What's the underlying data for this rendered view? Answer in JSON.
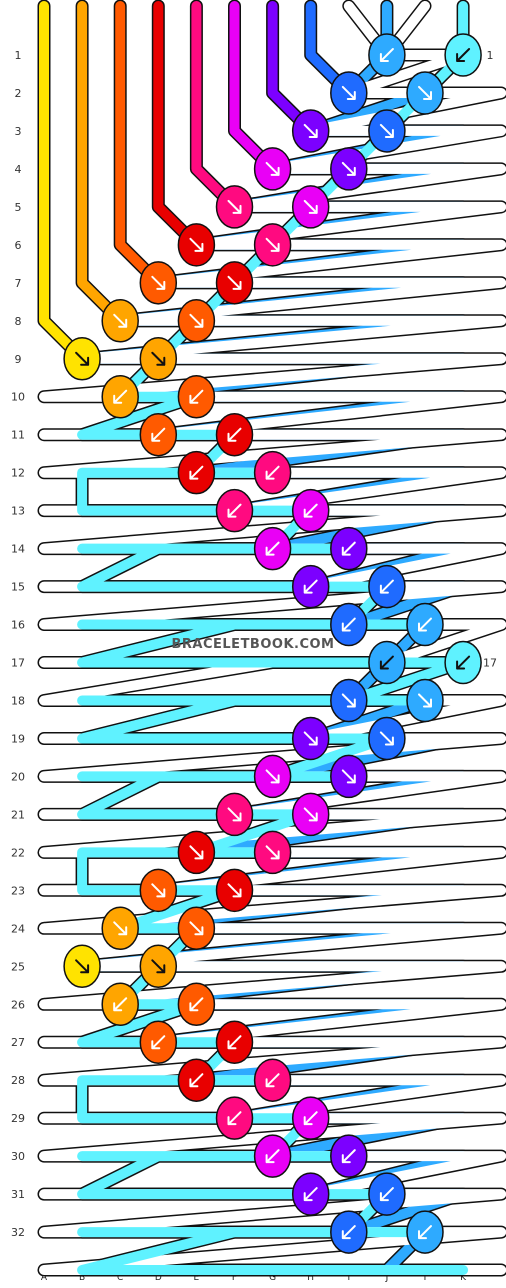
{
  "watermark": "BRACELETBOOK.COM",
  "strings": [
    {
      "label": "A",
      "color": "#ffe300"
    },
    {
      "label": "B",
      "color": "#ffa500"
    },
    {
      "label": "C",
      "color": "#ff5a00"
    },
    {
      "label": "D",
      "color": "#e80000"
    },
    {
      "label": "E",
      "color": "#ff0a80"
    },
    {
      "label": "F",
      "color": "#e900f6"
    },
    {
      "label": "G",
      "color": "#7c00ff"
    },
    {
      "label": "H",
      "color": "#1f6bff"
    },
    {
      "label": "I",
      "color": "#ffffff"
    },
    {
      "label": "J",
      "color": "#2eaaff"
    },
    {
      "label": "I",
      "color": "#ffffff"
    },
    {
      "label": "K",
      "color": "#5ff2ff"
    }
  ],
  "rows": [
    "1",
    "2",
    "3",
    "4",
    "5",
    "6",
    "7",
    "8",
    "9",
    "10",
    "11",
    "12",
    "13",
    "14",
    "15",
    "16",
    "17",
    "18",
    "19",
    "20",
    "21",
    "22",
    "23",
    "24",
    "25",
    "26",
    "27",
    "28",
    "29",
    "30",
    "31",
    "32"
  ],
  "knots": [
    {
      "row": 1,
      "col": 9,
      "color": "#2eaaff",
      "arrow": "bl"
    },
    {
      "row": 1,
      "col": 11,
      "color": "#5ff2ff",
      "arrow": "bl2"
    },
    {
      "row": 2,
      "col": 8,
      "color": "#1f6bff",
      "arrow": "br"
    },
    {
      "row": 2,
      "col": 10,
      "color": "#2eaaff",
      "arrow": "br"
    },
    {
      "row": 3,
      "col": 7,
      "color": "#7c00ff",
      "arrow": "br"
    },
    {
      "row": 3,
      "col": 9,
      "color": "#1f6bff",
      "arrow": "br"
    },
    {
      "row": 4,
      "col": 6,
      "color": "#e900f6",
      "arrow": "br"
    },
    {
      "row": 4,
      "col": 8,
      "color": "#7c00ff",
      "arrow": "br"
    },
    {
      "row": 5,
      "col": 5,
      "color": "#ff0a80",
      "arrow": "br"
    },
    {
      "row": 5,
      "col": 7,
      "color": "#e900f6",
      "arrow": "br"
    },
    {
      "row": 6,
      "col": 4,
      "color": "#e80000",
      "arrow": "br"
    },
    {
      "row": 6,
      "col": 6,
      "color": "#ff0a80",
      "arrow": "br"
    },
    {
      "row": 7,
      "col": 3,
      "color": "#ff5a00",
      "arrow": "br"
    },
    {
      "row": 7,
      "col": 5,
      "color": "#e80000",
      "arrow": "br"
    },
    {
      "row": 8,
      "col": 2,
      "color": "#ffa500",
      "arrow": "br"
    },
    {
      "row": 8,
      "col": 4,
      "color": "#ff5a00",
      "arrow": "br"
    },
    {
      "row": 9,
      "col": 1,
      "color": "#ffe300",
      "arrow": "br2"
    },
    {
      "row": 9,
      "col": 3,
      "color": "#ffa500",
      "arrow": "br2"
    },
    {
      "row": 10,
      "col": 2,
      "color": "#ffa500",
      "arrow": "bl"
    },
    {
      "row": 10,
      "col": 4,
      "color": "#ff5a00",
      "arrow": "bl"
    },
    {
      "row": 11,
      "col": 3,
      "color": "#ff5a00",
      "arrow": "bl"
    },
    {
      "row": 11,
      "col": 5,
      "color": "#e80000",
      "arrow": "bl"
    },
    {
      "row": 12,
      "col": 4,
      "color": "#e80000",
      "arrow": "bl"
    },
    {
      "row": 12,
      "col": 6,
      "color": "#ff0a80",
      "arrow": "bl"
    },
    {
      "row": 13,
      "col": 5,
      "color": "#ff0a80",
      "arrow": "bl"
    },
    {
      "row": 13,
      "col": 7,
      "color": "#e900f6",
      "arrow": "bl"
    },
    {
      "row": 14,
      "col": 6,
      "color": "#e900f6",
      "arrow": "bl"
    },
    {
      "row": 14,
      "col": 8,
      "color": "#7c00ff",
      "arrow": "bl"
    },
    {
      "row": 15,
      "col": 7,
      "color": "#7c00ff",
      "arrow": "bl"
    },
    {
      "row": 15,
      "col": 9,
      "color": "#1f6bff",
      "arrow": "bl"
    },
    {
      "row": 16,
      "col": 8,
      "color": "#1f6bff",
      "arrow": "bl"
    },
    {
      "row": 16,
      "col": 10,
      "color": "#2eaaff",
      "arrow": "bl"
    },
    {
      "row": 17,
      "col": 9,
      "color": "#2eaaff",
      "arrow": "bl2"
    },
    {
      "row": 17,
      "col": 11,
      "color": "#5ff2ff",
      "arrow": "bl2"
    },
    {
      "row": 18,
      "col": 8,
      "color": "#1f6bff",
      "arrow": "br"
    },
    {
      "row": 18,
      "col": 10,
      "color": "#2eaaff",
      "arrow": "br"
    },
    {
      "row": 19,
      "col": 7,
      "color": "#7c00ff",
      "arrow": "br"
    },
    {
      "row": 19,
      "col": 9,
      "color": "#1f6bff",
      "arrow": "br"
    },
    {
      "row": 20,
      "col": 6,
      "color": "#e900f6",
      "arrow": "br"
    },
    {
      "row": 20,
      "col": 8,
      "color": "#7c00ff",
      "arrow": "br"
    },
    {
      "row": 21,
      "col": 5,
      "color": "#ff0a80",
      "arrow": "br"
    },
    {
      "row": 21,
      "col": 7,
      "color": "#e900f6",
      "arrow": "br"
    },
    {
      "row": 22,
      "col": 4,
      "color": "#e80000",
      "arrow": "br"
    },
    {
      "row": 22,
      "col": 6,
      "color": "#ff0a80",
      "arrow": "br"
    },
    {
      "row": 23,
      "col": 3,
      "color": "#ff5a00",
      "arrow": "br"
    },
    {
      "row": 23,
      "col": 5,
      "color": "#e80000",
      "arrow": "br"
    },
    {
      "row": 24,
      "col": 2,
      "color": "#ffa500",
      "arrow": "br"
    },
    {
      "row": 24,
      "col": 4,
      "color": "#ff5a00",
      "arrow": "br"
    },
    {
      "row": 25,
      "col": 1,
      "color": "#ffe300",
      "arrow": "br2"
    },
    {
      "row": 25,
      "col": 3,
      "color": "#ffa500",
      "arrow": "br2"
    },
    {
      "row": 26,
      "col": 2,
      "color": "#ffa500",
      "arrow": "bl"
    },
    {
      "row": 26,
      "col": 4,
      "color": "#ff5a00",
      "arrow": "bl"
    },
    {
      "row": 27,
      "col": 3,
      "color": "#ff5a00",
      "arrow": "bl"
    },
    {
      "row": 27,
      "col": 5,
      "color": "#e80000",
      "arrow": "bl"
    },
    {
      "row": 28,
      "col": 4,
      "color": "#e80000",
      "arrow": "bl"
    },
    {
      "row": 28,
      "col": 6,
      "color": "#ff0a80",
      "arrow": "bl"
    },
    {
      "row": 29,
      "col": 5,
      "color": "#ff0a80",
      "arrow": "bl"
    },
    {
      "row": 29,
      "col": 7,
      "color": "#e900f6",
      "arrow": "bl"
    },
    {
      "row": 30,
      "col": 6,
      "color": "#e900f6",
      "arrow": "bl"
    },
    {
      "row": 30,
      "col": 8,
      "color": "#7c00ff",
      "arrow": "bl"
    },
    {
      "row": 31,
      "col": 7,
      "color": "#7c00ff",
      "arrow": "bl"
    },
    {
      "row": 31,
      "col": 9,
      "color": "#1f6bff",
      "arrow": "bl"
    },
    {
      "row": 32,
      "col": 8,
      "color": "#1f6bff",
      "arrow": "bl"
    },
    {
      "row": 32,
      "col": 10,
      "color": "#2eaaff",
      "arrow": "bl"
    }
  ]
}
